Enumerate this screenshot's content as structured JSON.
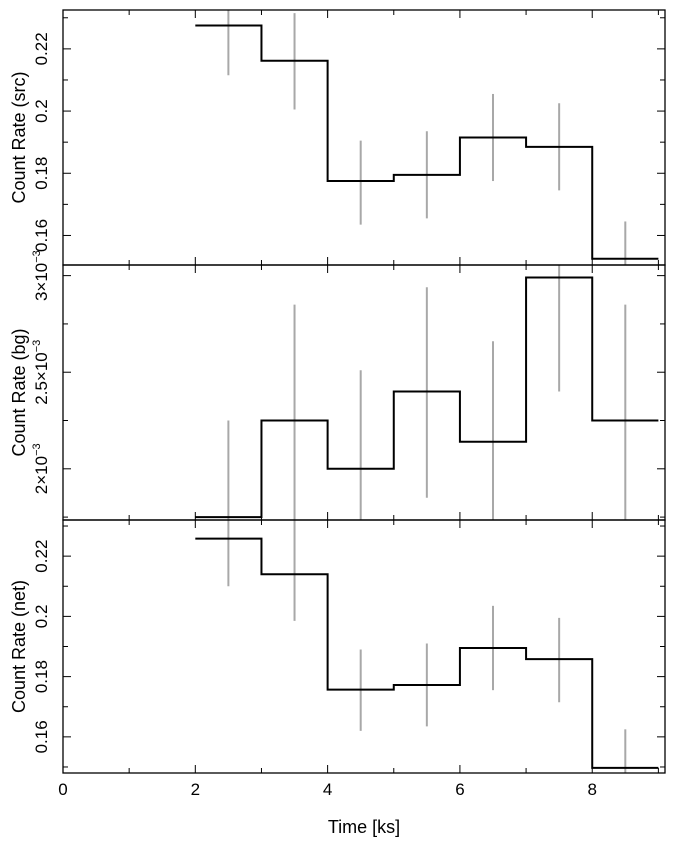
{
  "chart_data": {
    "type": "line",
    "x_label": "Time [ks]",
    "x_range": [
      0,
      9.1
    ],
    "x_ticks": [
      0,
      2,
      4,
      6,
      8
    ],
    "x_tick_labels": [
      "0",
      "2",
      "4",
      "6",
      "8"
    ],
    "bins": [
      [
        2,
        3
      ],
      [
        3,
        4
      ],
      [
        4,
        5
      ],
      [
        5,
        6
      ],
      [
        6,
        7
      ],
      [
        7,
        8
      ],
      [
        8,
        9
      ]
    ],
    "panels": [
      {
        "id": "src",
        "ylabel": "Count Rate (src)",
        "ylim": [
          0.1505,
          0.2325
        ],
        "y_ticks": [
          0.16,
          0.18,
          0.2,
          0.22
        ],
        "y_tick_labels": [
          "0.16",
          "0.18",
          "0.2",
          "0.22"
        ],
        "values": [
          0.2275,
          0.2162,
          0.1775,
          0.1795,
          0.1915,
          0.1885,
          0.1525
        ],
        "err_low": [
          0.2115,
          0.2005,
          0.1635,
          0.1655,
          0.1775,
          0.1745,
          0.1505
        ],
        "err_high": [
          0.2325,
          0.2315,
          0.1905,
          0.1935,
          0.2055,
          0.2025,
          0.1645
        ]
      },
      {
        "id": "bg",
        "ylabel": "Count Rate (bg)",
        "ylim": [
          0.001735,
          0.003055
        ],
        "y_ticks": [
          0.002,
          0.0025,
          0.003
        ],
        "y_tick_labels": [
          {
            "mantissa": "2",
            "exponent": "−3"
          },
          {
            "mantissa": "2.5",
            "exponent": "−3"
          },
          {
            "mantissa": "3",
            "exponent": "−3"
          }
        ],
        "values": [
          0.00175,
          0.00225,
          0.002,
          0.0024,
          0.00214,
          0.00299,
          0.00225
        ],
        "err_low": [
          0.001735,
          0.001735,
          0.001735,
          0.00185,
          0.001735,
          0.0024,
          0.001735
        ],
        "err_high": [
          0.00225,
          0.00285,
          0.00251,
          0.00294,
          0.00266,
          0.003055,
          0.00285
        ]
      },
      {
        "id": "net",
        "ylabel": "Count Rate (net)",
        "ylim": [
          0.148,
          0.232
        ],
        "y_ticks": [
          0.16,
          0.18,
          0.2,
          0.22
        ],
        "y_tick_labels": [
          "0.16",
          "0.18",
          "0.2",
          "0.22"
        ],
        "values": [
          0.2258,
          0.214,
          0.1757,
          0.1772,
          0.1895,
          0.1858,
          0.1497
        ],
        "err_low": [
          0.21,
          0.1985,
          0.162,
          0.1635,
          0.1755,
          0.1715,
          0.148
        ],
        "err_high": [
          0.232,
          0.232,
          0.189,
          0.191,
          0.2035,
          0.1995,
          0.1625
        ]
      }
    ]
  }
}
